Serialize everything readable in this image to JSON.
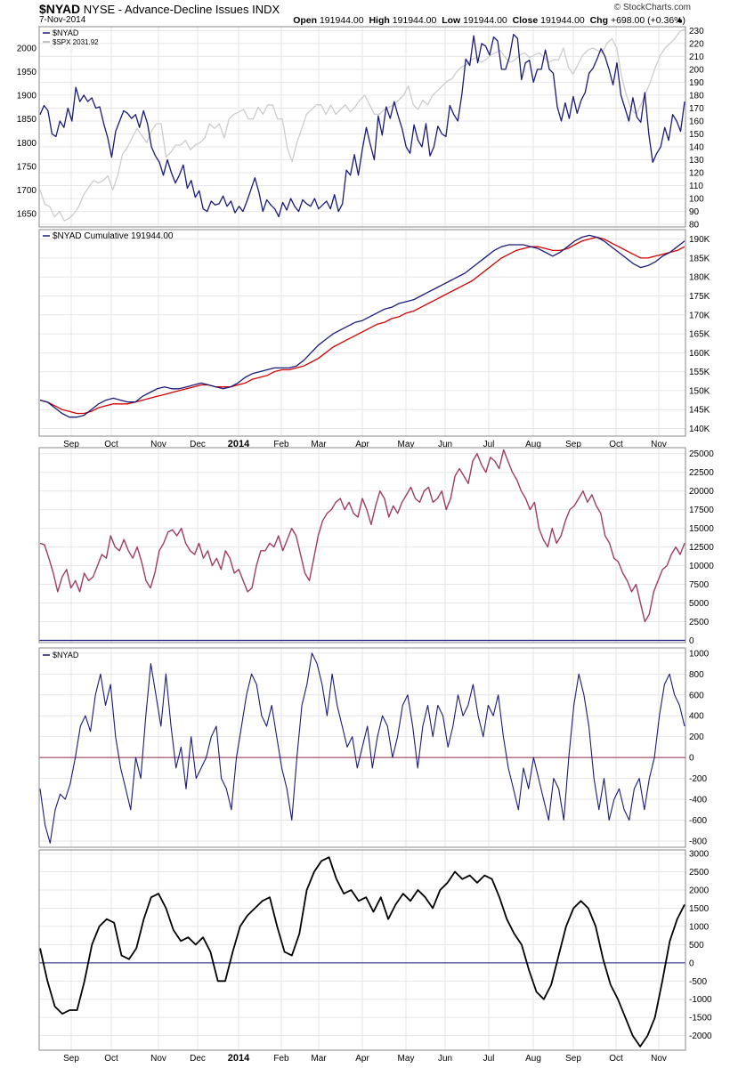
{
  "header": {
    "symbol": "$NYAD",
    "description": "NYSE - Advance-Decline Issues",
    "exchange": "INDX",
    "date": "7-Nov-2014",
    "brand": "© StockCharts.com",
    "open_label": "Open",
    "open": "191944.00",
    "high_label": "High",
    "high": "191944.00",
    "low_label": "Low",
    "low": "191944.00",
    "close_label": "Close",
    "close": "191944.00",
    "chg_label": "Chg",
    "chg": "+698.00 (+0.36%)"
  },
  "colors": {
    "navy": "#1a1a7a",
    "spx": "#cccccc",
    "red": "#d40000",
    "maroon": "#a03b62",
    "black": "#000000",
    "grid": "#e6e6e6"
  },
  "chart_data": [
    {
      "type": "line",
      "panel": "price",
      "legend": [
        "$NYAD",
        "$SPX 2031.92"
      ],
      "y_left_ticks": [
        1650,
        1700,
        1750,
        1800,
        1850,
        1900,
        1950,
        2000
      ],
      "y_right_ticks": [
        80,
        90,
        100,
        110,
        120,
        130,
        140,
        150,
        160,
        170,
        180,
        190,
        200,
        210,
        220,
        230
      ],
      "y_right_range": [
        78,
        233
      ],
      "y_left_range": [
        1622,
        2045
      ],
      "series": [
        {
          "name": "$NYAD",
          "axis": "right",
          "values": [
            165,
            172,
            168,
            150,
            148,
            160,
            155,
            170,
            160,
            186,
            175,
            180,
            175,
            178,
            170,
            171,
            158,
            147,
            132,
            152,
            160,
            168,
            166,
            162,
            165,
            155,
            168,
            158,
            140,
            133,
            128,
            118,
            130,
            120,
            112,
            118,
            126,
            108,
            114,
            101,
            106,
            92,
            90,
            98,
            95,
            96,
            102,
            94,
            98,
            89,
            94,
            90,
            98,
            107,
            116,
            105,
            90,
            99,
            95,
            92,
            86,
            97,
            91,
            100,
            94,
            90,
            99,
            96,
            94,
            100,
            92,
            95,
            98,
            92,
            103,
            90,
            96,
            122,
            118,
            134,
            118,
            138,
            155,
            142,
            130,
            164,
            149,
            171,
            162,
            175,
            164,
            154,
            140,
            135,
            157,
            145,
            140,
            158,
            133,
            140,
            156,
            150,
            148,
            172,
            165,
            160,
            180,
            208,
            203,
            226,
            205,
            220,
            218,
            211,
            225,
            222,
            200,
            200,
            210,
            227,
            224,
            192,
            205,
            207,
            190,
            200,
            200,
            215,
            200,
            197,
            171,
            160,
            174,
            162,
            179,
            166,
            176,
            182,
            197,
            201,
            208,
            216,
            210,
            200,
            188,
            205,
            180,
            170,
            160,
            178,
            163,
            159,
            182,
            150,
            128,
            135,
            140,
            155,
            145,
            165,
            160,
            152,
            175
          ]
        },
        {
          "name": "$SPX 2031.92",
          "axis": "left",
          "values": [
            1700,
            1670,
            1665,
            1643,
            1655,
            1635,
            1640,
            1650,
            1665,
            1690,
            1705,
            1720,
            1715,
            1720,
            1730,
            1700,
            1730,
            1775,
            1790,
            1810,
            1830,
            1815,
            1800,
            1825,
            1840,
            1840,
            1770,
            1780,
            1795,
            1795,
            1805,
            1785,
            1795,
            1800,
            1810,
            1840,
            1830,
            1840,
            1810,
            1850,
            1860,
            1865,
            1870,
            1850,
            1850,
            1875,
            1860,
            1880,
            1880,
            1850,
            1850,
            1790,
            1760,
            1800,
            1830,
            1860,
            1870,
            1880,
            1880,
            1860,
            1880,
            1860,
            1870,
            1880,
            1865,
            1875,
            1890,
            1900,
            1880,
            1860,
            1860,
            1870,
            1875,
            1880,
            1890,
            1900,
            1920,
            1880,
            1870,
            1890,
            1880,
            1900,
            1910,
            1920,
            1930,
            1935,
            1950,
            1960,
            1965,
            1975,
            1980,
            1970,
            1975,
            1985,
            1990,
            1995,
            1980,
            1970,
            1975,
            1985,
            1990,
            1980,
            1985,
            1990,
            1980,
            1970,
            1975,
            1975,
            2000,
            1960,
            1945,
            1965,
            1985,
            1995,
            2000,
            1995,
            1990,
            2010,
            2020,
            2000,
            1940,
            1900,
            1870,
            1860,
            1880,
            1905,
            1930,
            1960,
            1985,
            2000,
            2010,
            2020,
            2035,
            2040
          ]
        }
      ]
    },
    {
      "type": "line",
      "panel": "cumulative",
      "legend": [
        "$NYAD Cumulative 191944.00"
      ],
      "y_ticks": [
        "140K",
        "145K",
        "150K",
        "155K",
        "160K",
        "165K",
        "170K",
        "175K",
        "180K",
        "185K",
        "190K"
      ],
      "y_range": [
        138,
        192.5
      ],
      "series": [
        {
          "name": "$NYAD Cumulative 191944.00",
          "values": [
            147.5,
            147,
            145.5,
            144,
            143,
            143,
            143.5,
            145,
            146.5,
            147.5,
            148,
            147.5,
            147,
            147,
            148.5,
            149.5,
            150.5,
            151,
            150.5,
            150.5,
            151,
            151.5,
            152,
            151.5,
            151,
            150.5,
            151,
            152,
            153.5,
            154.5,
            155,
            155.5,
            156,
            156,
            156,
            156.5,
            158,
            160,
            162,
            163.5,
            165,
            166,
            167,
            168,
            168.5,
            169.5,
            170.5,
            171.5,
            172,
            173,
            173.5,
            174,
            175,
            176,
            177,
            178,
            179,
            180,
            181,
            182.5,
            184,
            185.5,
            187,
            188,
            188.5,
            188.5,
            188.5,
            188,
            187.5,
            186.5,
            185.5,
            186.5,
            188,
            189.5,
            190.5,
            191,
            190.5,
            189.5,
            188,
            186.5,
            185,
            183.5,
            182.5,
            183,
            184,
            185.5,
            186.5,
            188,
            189.5
          ]
        },
        {
          "name": "moving-average",
          "values": [
            147.5,
            147,
            146,
            145,
            144.5,
            144,
            144,
            144.5,
            145.5,
            146,
            146.5,
            146.5,
            146.5,
            147,
            147.5,
            148,
            148.5,
            149,
            149.5,
            150,
            150.5,
            151,
            151.5,
            151.5,
            151,
            151,
            151,
            151.5,
            152,
            153,
            153.5,
            154,
            155,
            155.5,
            155.5,
            156,
            156.5,
            157.5,
            158.5,
            160,
            161.5,
            162.5,
            163.5,
            164.5,
            165.5,
            166.5,
            167.5,
            168,
            169,
            169.5,
            170.5,
            171,
            172,
            173,
            174,
            175,
            176,
            177,
            178,
            179,
            180.5,
            182,
            183.5,
            185,
            186,
            187,
            187.5,
            188,
            188,
            187.5,
            187,
            187,
            187.5,
            188.5,
            189.5,
            190,
            190.5,
            190,
            189,
            188,
            187,
            186,
            185,
            185,
            185.5,
            186,
            186.5,
            187,
            188
          ]
        }
      ]
    },
    {
      "type": "line",
      "panel": "oscillator-1",
      "y_ticks": [
        0,
        2500,
        5000,
        7500,
        10000,
        12500,
        15000,
        17500,
        20000,
        22500,
        25000
      ],
      "y_range": [
        -300,
        25800
      ],
      "series": [
        {
          "name": "",
          "values": [
            13000,
            12800,
            11000,
            9000,
            6500,
            8500,
            9500,
            7000,
            8000,
            6500,
            9000,
            8000,
            8500,
            10000,
            11500,
            11000,
            14000,
            12500,
            12000,
            13500,
            12000,
            11000,
            12500,
            10500,
            8000,
            7000,
            9000,
            12000,
            13000,
            14500,
            14800,
            14000,
            15000,
            13000,
            12000,
            11500,
            13000,
            11000,
            12000,
            10000,
            11000,
            9500,
            12000,
            11000,
            9000,
            9500,
            8000,
            6500,
            7000,
            10000,
            12000,
            12000,
            13000,
            12500,
            14000,
            12000,
            13500,
            15000,
            14000,
            11500,
            9000,
            8000,
            11000,
            14000,
            16000,
            17000,
            17500,
            18500,
            19000,
            17500,
            18500,
            17000,
            16500,
            19000,
            17500,
            15500,
            18000,
            20000,
            19000,
            16500,
            18000,
            17000,
            18500,
            19500,
            20500,
            19000,
            18500,
            20000,
            20500,
            18500,
            19000,
            20000,
            17500,
            19000,
            22000,
            23000,
            22000,
            21000,
            24000,
            25000,
            23500,
            22500,
            24500,
            24000,
            23000,
            25500,
            24000,
            22500,
            21500,
            20000,
            19000,
            17500,
            18500,
            15000,
            13500,
            12500,
            15000,
            13000,
            14000,
            16000,
            17500,
            18000,
            19000,
            20000,
            18500,
            19500,
            18000,
            17000,
            14000,
            13000,
            11000,
            10500,
            9000,
            8000,
            6500,
            7500,
            5000,
            2500,
            3500,
            6500,
            8000,
            9500,
            10000,
            11500,
            12500,
            11500,
            13000
          ]
        }
      ]
    },
    {
      "type": "line",
      "panel": "oscillator-2",
      "legend": [
        "$NYAD"
      ],
      "y_ticks": [
        -800,
        -600,
        -400,
        -200,
        0,
        200,
        400,
        600,
        800,
        1000
      ],
      "y_range": [
        -860,
        1050
      ],
      "series": [
        {
          "name": "$NYAD",
          "values": [
            -300,
            -650,
            -820,
            -500,
            -350,
            -400,
            -250,
            0,
            300,
            400,
            250,
            600,
            800,
            500,
            700,
            200,
            -100,
            -300,
            -500,
            0,
            -200,
            400,
            900,
            600,
            300,
            800,
            300,
            -100,
            100,
            -300,
            200,
            -200,
            -100,
            0,
            200,
            300,
            -200,
            -300,
            -500,
            0,
            300,
            600,
            800,
            700,
            400,
            300,
            500,
            200,
            -100,
            -300,
            -600,
            0,
            500,
            700,
            1000,
            900,
            700,
            400,
            800,
            500,
            300,
            100,
            200,
            -100,
            100,
            300,
            -100,
            200,
            400,
            300,
            0,
            200,
            500,
            600,
            300,
            -100,
            300,
            500,
            200,
            500,
            400,
            100,
            300,
            600,
            400,
            500,
            700,
            400,
            200,
            500,
            400,
            600,
            200,
            -100,
            -300,
            -500,
            -100,
            -300,
            0,
            -200,
            -400,
            -600,
            -200,
            -300,
            -600,
            0,
            500,
            800,
            600,
            300,
            -200,
            -500,
            -200,
            -600,
            -400,
            -300,
            -500,
            -600,
            -300,
            -200,
            -500,
            -200,
            0,
            400,
            700,
            800,
            600,
            500,
            300
          ]
        }
      ]
    },
    {
      "type": "line",
      "panel": "oscillator-3",
      "y_ticks": [
        -2000,
        -1500,
        -1000,
        -500,
        0,
        500,
        1000,
        1500,
        2000,
        2500,
        3000
      ],
      "y_range": [
        -2400,
        3100
      ],
      "x_ticks": [
        "Sep",
        "Oct",
        "Nov",
        "Dec",
        "2014",
        "Feb",
        "Mar",
        "Apr",
        "May",
        "Jun",
        "Jul",
        "Aug",
        "Sep",
        "Oct",
        "Nov"
      ],
      "series": [
        {
          "name": "",
          "values": [
            400,
            -500,
            -1200,
            -1400,
            -1300,
            -1300,
            -500,
            500,
            1000,
            1200,
            1100,
            200,
            100,
            400,
            1200,
            1800,
            1900,
            1500,
            900,
            600,
            700,
            500,
            700,
            300,
            -500,
            -500,
            300,
            1000,
            1300,
            1500,
            1700,
            1800,
            1000,
            300,
            200,
            800,
            2000,
            2500,
            2800,
            2900,
            2300,
            1900,
            2000,
            1700,
            1800,
            1400,
            1800,
            1200,
            1600,
            1900,
            1700,
            2000,
            1800,
            1500,
            2000,
            2200,
            2500,
            2300,
            2400,
            2200,
            2400,
            2300,
            1800,
            1200,
            800,
            500,
            -200,
            -800,
            -1000,
            -600,
            200,
            1000,
            1500,
            1700,
            1500,
            1000,
            100,
            -600,
            -1000,
            -1500,
            -2000,
            -2300,
            -2000,
            -1500,
            -500,
            600,
            1200,
            1600
          ]
        }
      ]
    }
  ]
}
